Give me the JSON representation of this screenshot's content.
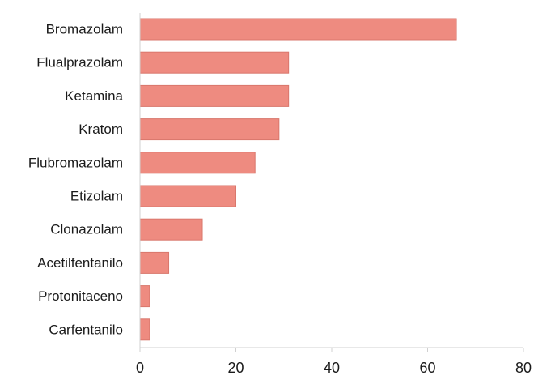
{
  "chart_data": {
    "type": "bar",
    "orientation": "horizontal",
    "categories": [
      "Bromazolam",
      "Flualprazolam",
      "Ketamina",
      "Kratom",
      "Flubromazolam",
      "Etizolam",
      "Clonazolam",
      "Acetilfentanilo",
      "Protonitaceno",
      "Carfentanilo"
    ],
    "values": [
      66,
      31,
      31,
      29,
      24,
      20,
      13,
      6,
      2,
      2
    ],
    "xlim": [
      0,
      80
    ],
    "xticks": [
      0,
      20,
      40,
      60,
      80
    ],
    "title": "",
    "xlabel": "",
    "ylabel": "",
    "grid": false,
    "legend": "none",
    "bar_color": "#ee8b80",
    "bar_edge_color": "#d9776c",
    "axis_color": "#d0d0d0"
  }
}
